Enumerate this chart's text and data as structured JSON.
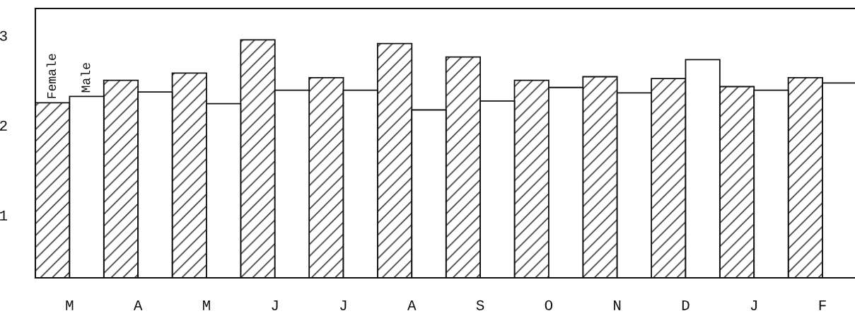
{
  "chart_data": {
    "type": "bar",
    "categories": [
      "M",
      "A",
      "M",
      "J",
      "J",
      "A",
      "S",
      "O",
      "N",
      "D",
      "J",
      "F"
    ],
    "series": [
      {
        "name": "Female",
        "color": "#111111",
        "values": [
          2.25,
          2.5,
          2.58,
          2.95,
          2.53,
          2.91,
          2.76,
          2.5,
          2.54,
          2.52,
          2.43,
          2.53
        ]
      },
      {
        "name": "Male",
        "color": "#ffffff",
        "values": [
          2.32,
          2.37,
          2.24,
          2.39,
          2.39,
          2.17,
          2.27,
          2.42,
          2.36,
          2.73,
          2.39,
          2.47
        ]
      }
    ],
    "ylim": [
      0.3,
      3.3
    ],
    "yticks": [
      1,
      2,
      3
    ],
    "grid": false,
    "legend": false
  }
}
